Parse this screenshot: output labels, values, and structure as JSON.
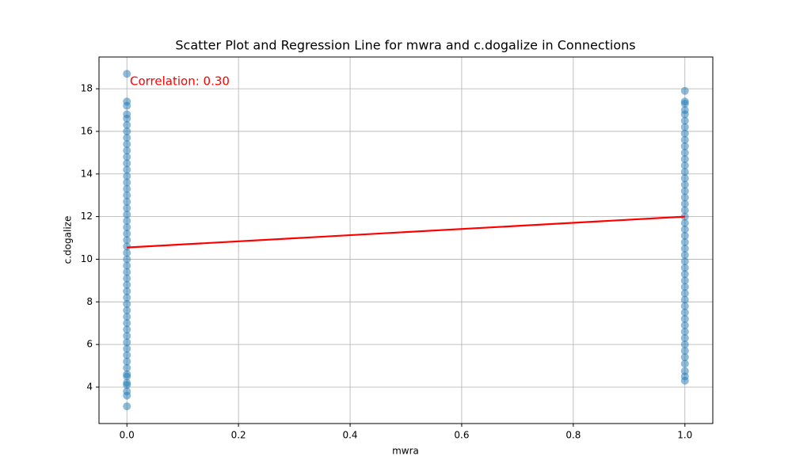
{
  "chart_data": {
    "type": "scatter",
    "title": "Scatter Plot and Regression Line for mwra and c.dogalize in Connections",
    "x_label": "mwra",
    "y_label": "c.dogalize",
    "annotation": "Correlation: 0.30",
    "xlim": [
      -0.05,
      1.05
    ],
    "ylim": [
      2.29,
      19.49
    ],
    "xticks": [
      {
        "value": 0,
        "label": "0.0"
      },
      {
        "value": 0.2,
        "label": "0.2"
      },
      {
        "value": 0.4,
        "label": "0.4"
      },
      {
        "value": 0.6,
        "label": "0.6"
      },
      {
        "value": 0.8,
        "label": "0.8"
      },
      {
        "value": 1,
        "label": "1.0"
      }
    ],
    "yticks": [
      4,
      6,
      8,
      10,
      12,
      14,
      16,
      18
    ],
    "grid": true,
    "series": [
      {
        "color": "#1f77b4",
        "x": [
          0,
          0,
          0,
          0,
          0,
          0,
          0,
          0,
          0,
          0,
          0,
          0,
          0,
          0,
          0,
          0,
          0,
          0,
          0,
          0,
          0,
          0,
          0,
          0,
          0,
          0,
          0,
          0,
          0,
          0,
          0,
          0,
          0,
          0,
          0,
          0,
          0,
          0,
          0,
          0,
          0,
          0,
          0,
          0,
          0,
          0,
          0,
          0,
          0,
          0,
          0,
          1,
          1,
          1,
          1,
          1,
          1,
          1,
          1,
          1,
          1,
          1,
          1,
          1,
          1,
          1,
          1,
          1,
          1,
          1,
          1,
          1,
          1,
          1,
          1,
          1,
          1,
          1,
          1,
          1,
          1,
          1,
          1,
          1,
          1,
          1,
          1,
          1,
          1,
          1,
          1,
          1,
          1,
          1,
          1,
          1,
          1,
          1
        ],
        "values": [
          3.1,
          3.6,
          3.8,
          4.1,
          4.2,
          4.5,
          4.6,
          4.9,
          5.2,
          5.5,
          5.8,
          6.1,
          6.4,
          6.7,
          7.0,
          7.3,
          7.6,
          7.9,
          8.2,
          8.5,
          8.8,
          9.1,
          9.4,
          9.7,
          10.0,
          10.3,
          10.6,
          10.9,
          11.2,
          11.5,
          11.8,
          12.1,
          12.4,
          12.7,
          13.0,
          13.3,
          13.6,
          13.9,
          14.2,
          14.5,
          14.8,
          15.1,
          15.4,
          15.7,
          16.0,
          16.3,
          16.6,
          16.8,
          17.2,
          17.4,
          18.7,
          4.3,
          4.5,
          4.75,
          5.1,
          5.4,
          5.7,
          6.0,
          6.3,
          6.6,
          6.9,
          7.2,
          7.5,
          7.8,
          8.1,
          8.4,
          8.7,
          9.0,
          9.3,
          9.6,
          9.9,
          10.2,
          10.5,
          10.8,
          11.1,
          11.4,
          11.7,
          12.0,
          12.3,
          12.6,
          12.9,
          13.2,
          13.5,
          13.8,
          14.1,
          14.4,
          14.7,
          15.0,
          15.3,
          15.6,
          15.9,
          16.2,
          16.5,
          16.8,
          17.0,
          17.3,
          17.4,
          17.9
        ]
      }
    ],
    "regression": {
      "color": "#ff0000",
      "x": [
        0,
        1
      ],
      "values": [
        10.55,
        12.0
      ]
    }
  }
}
